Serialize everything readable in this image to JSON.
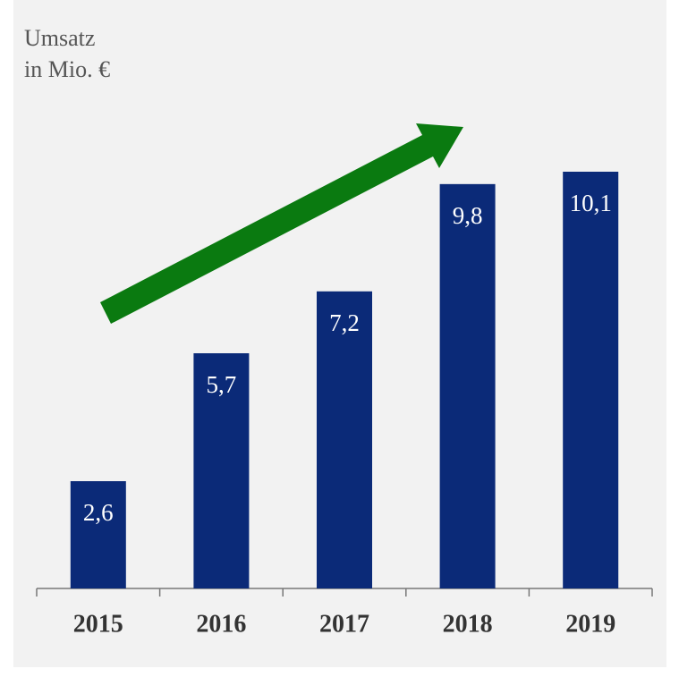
{
  "chart_data": {
    "type": "bar",
    "title": "Umsatz",
    "subtitle": "in Mio. €",
    "categories": [
      "2015",
      "2016",
      "2017",
      "2018",
      "2019"
    ],
    "values": [
      2.6,
      5.7,
      7.2,
      9.8,
      10.1
    ],
    "value_labels": [
      "2,6",
      "5,7",
      "7,2",
      "9,8",
      "10,1"
    ],
    "color": "#0b2a78"
  }
}
